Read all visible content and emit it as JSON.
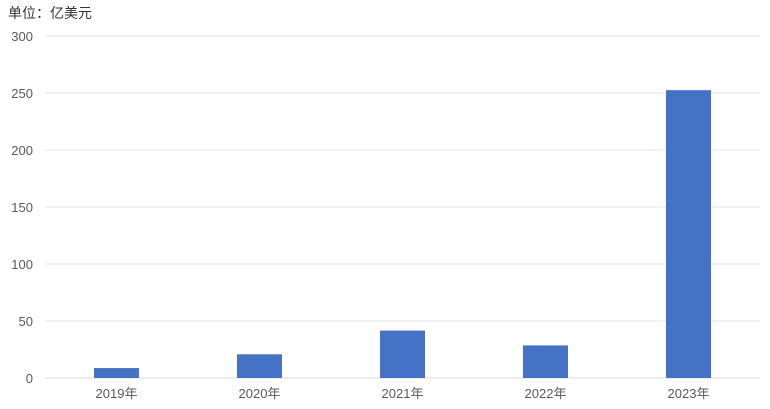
{
  "chart_data": {
    "type": "bar",
    "unit_label": "单位：亿美元",
    "categories": [
      "2019年",
      "2020年",
      "2021年",
      "2022年",
      "2023年"
    ],
    "values": [
      8.7,
      20.8,
      41.6,
      28.6,
      252.5
    ],
    "ylim": [
      0,
      300
    ],
    "yticks": [
      0,
      50,
      100,
      150,
      200,
      250,
      300
    ],
    "grid": true,
    "bar_color": "#4472C4"
  }
}
